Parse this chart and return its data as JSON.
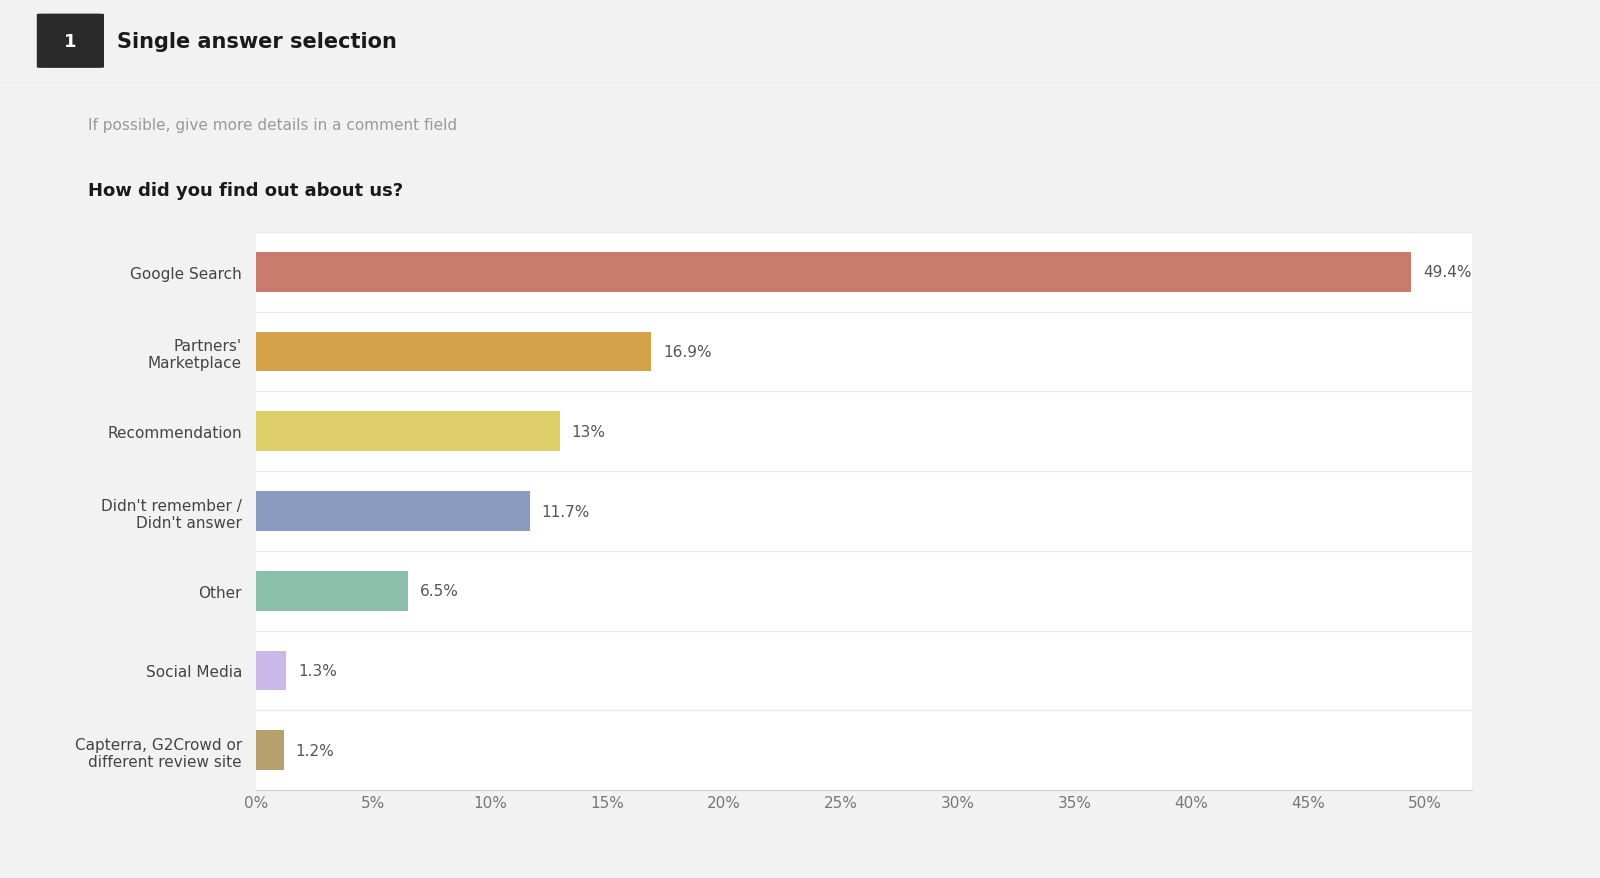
{
  "title_badge": "1",
  "title": "Single answer selection",
  "subtitle": "If possible, give more details in a comment field",
  "question": "How did you find out about us?",
  "categories": [
    "Google Search",
    "Partners'\nMarketplace",
    "Recommendation",
    "Didn't remember /\nDidn't answer",
    "Other",
    "Social Media",
    "Capterra, G2Crowd or\ndifferent review site"
  ],
  "values": [
    49.4,
    16.9,
    13.0,
    11.7,
    6.5,
    1.3,
    1.2
  ],
  "labels": [
    "49.4%",
    "16.9%",
    "13%",
    "11.7%",
    "6.5%",
    "1.3%",
    "1.2%"
  ],
  "bar_colors": [
    "#c97b6e",
    "#d4a248",
    "#dece6a",
    "#8b9bbf",
    "#8bbfaa",
    "#c9b8e8",
    "#b8a06e"
  ],
  "xlim": [
    0,
    52
  ],
  "xticks": [
    0,
    5,
    10,
    15,
    20,
    25,
    30,
    35,
    40,
    45,
    50
  ],
  "xticklabels": [
    "0%",
    "5%",
    "10%",
    "15%",
    "20%",
    "25%",
    "30%",
    "35%",
    "40%",
    "45%",
    "50%"
  ],
  "background_color": "#f2f2f2",
  "header_color": "#eeeeee",
  "plot_bg_color": "#ffffff",
  "bar_height": 0.5,
  "title_fontsize": 15,
  "subtitle_fontsize": 11,
  "question_fontsize": 13,
  "label_fontsize": 11,
  "tick_fontsize": 11,
  "ylabel_fontsize": 11
}
